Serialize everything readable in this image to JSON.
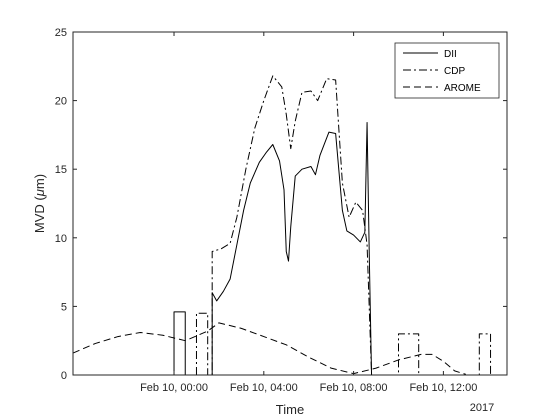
{
  "chart_data": {
    "type": "line",
    "xlabel": "Time",
    "ylabel": "MVD (μm)",
    "ylabel_parts": [
      "MVD (",
      "μ",
      "m)"
    ],
    "x_offset_label": "2017",
    "xlim": [
      "Feb 09, 19:30",
      "Feb 10, 14:50"
    ],
    "ylim": [
      0,
      25
    ],
    "x_ticks": [
      "Feb 10, 00:00",
      "Feb 10, 04:00",
      "Feb 10, 08:00",
      "Feb 10, 12:00"
    ],
    "y_ticks": [
      "0",
      "5",
      "10",
      "15",
      "20",
      "25"
    ],
    "legend_position": "top-right",
    "series": [
      {
        "name": "DII",
        "style": "solid",
        "color": "#000000",
        "points": [
          [
            "Feb 10, 00:00",
            0
          ],
          [
            "Feb 10, 00:00",
            4.6
          ],
          [
            "Feb 10, 00:30",
            4.6
          ],
          [
            "Feb 10, 00:30",
            0
          ],
          [
            "Feb 10, 01:42",
            0
          ],
          [
            "Feb 10, 01:42",
            6.0
          ],
          [
            "Feb 10, 01:54",
            5.4
          ],
          [
            "Feb 10, 02:12",
            6.1
          ],
          [
            "Feb 10, 02:30",
            7.0
          ],
          [
            "Feb 10, 02:48",
            9.5
          ],
          [
            "Feb 10, 03:06",
            12.0
          ],
          [
            "Feb 10, 03:24",
            14.0
          ],
          [
            "Feb 10, 03:48",
            15.5
          ],
          [
            "Feb 10, 04:06",
            16.2
          ],
          [
            "Feb 10, 04:24",
            16.8
          ],
          [
            "Feb 10, 04:42",
            15.6
          ],
          [
            "Feb 10, 04:54",
            13.5
          ],
          [
            "Feb 10, 05:00",
            9.0
          ],
          [
            "Feb 10, 05:06",
            8.3
          ],
          [
            "Feb 10, 05:12",
            10.8
          ],
          [
            "Feb 10, 05:24",
            14.5
          ],
          [
            "Feb 10, 05:42",
            15.0
          ],
          [
            "Feb 10, 06:06",
            15.2
          ],
          [
            "Feb 10, 06:18",
            14.6
          ],
          [
            "Feb 10, 06:30",
            16.0
          ],
          [
            "Feb 10, 06:54",
            17.7
          ],
          [
            "Feb 10, 07:12",
            17.6
          ],
          [
            "Feb 10, 07:30",
            12.0
          ],
          [
            "Feb 10, 07:42",
            10.5
          ],
          [
            "Feb 10, 08:00",
            10.2
          ],
          [
            "Feb 10, 08:18",
            9.7
          ],
          [
            "Feb 10, 08:30",
            10.4
          ],
          [
            "Feb 10, 08:36",
            18.4
          ],
          [
            "Feb 10, 08:42",
            8.5
          ],
          [
            "Feb 10, 08:48",
            0
          ]
        ]
      },
      {
        "name": "CDP",
        "style": "dashdot",
        "color": "#000000",
        "points": [
          [
            "Feb 10, 01:00",
            0
          ],
          [
            "Feb 10, 01:00",
            4.5
          ],
          [
            "Feb 10, 01:30",
            4.5
          ],
          [
            "Feb 10, 01:30",
            0
          ],
          [
            "Feb 10, 01:42",
            0
          ],
          [
            "Feb 10, 01:42",
            9.0
          ],
          [
            "Feb 10, 02:06",
            9.2
          ],
          [
            "Feb 10, 02:30",
            9.6
          ],
          [
            "Feb 10, 02:48",
            11.5
          ],
          [
            "Feb 10, 03:12",
            15.0
          ],
          [
            "Feb 10, 03:36",
            18.0
          ],
          [
            "Feb 10, 04:00",
            20.0
          ],
          [
            "Feb 10, 04:24",
            21.8
          ],
          [
            "Feb 10, 04:48",
            21.0
          ],
          [
            "Feb 10, 05:00",
            19.0
          ],
          [
            "Feb 10, 05:12",
            16.5
          ],
          [
            "Feb 10, 05:24",
            18.5
          ],
          [
            "Feb 10, 05:42",
            20.6
          ],
          [
            "Feb 10, 06:06",
            20.7
          ],
          [
            "Feb 10, 06:24",
            20.0
          ],
          [
            "Feb 10, 06:48",
            21.6
          ],
          [
            "Feb 10, 07:12",
            21.5
          ],
          [
            "Feb 10, 07:30",
            14.0
          ],
          [
            "Feb 10, 07:48",
            11.5
          ],
          [
            "Feb 10, 08:06",
            12.6
          ],
          [
            "Feb 10, 08:24",
            12.0
          ],
          [
            "Feb 10, 08:36",
            9.5
          ],
          [
            "Feb 10, 08:48",
            0
          ],
          [
            "Feb 10, 10:00",
            0
          ],
          [
            "Feb 10, 10:00",
            3.0
          ],
          [
            "Feb 10, 10:54",
            3.0
          ],
          [
            "Feb 10, 10:54",
            0
          ],
          [
            "Feb 10, 13:36",
            0
          ],
          [
            "Feb 10, 13:36",
            3.0
          ],
          [
            "Feb 10, 14:06",
            3.0
          ],
          [
            "Feb 10, 14:06",
            0
          ]
        ]
      },
      {
        "name": "AROME",
        "style": "dashed",
        "color": "#000000",
        "points": [
          [
            "Feb 09, 19:30",
            1.6
          ],
          [
            "Feb 09, 20:30",
            2.3
          ],
          [
            "Feb 09, 21:30",
            2.8
          ],
          [
            "Feb 09, 22:30",
            3.1
          ],
          [
            "Feb 09, 23:30",
            2.9
          ],
          [
            "Feb 10, 00:30",
            2.5
          ],
          [
            "Feb 10, 01:30",
            3.2
          ],
          [
            "Feb 10, 02:00",
            3.8
          ],
          [
            "Feb 10, 03:00",
            3.4
          ],
          [
            "Feb 10, 04:00",
            2.8
          ],
          [
            "Feb 10, 05:00",
            2.2
          ],
          [
            "Feb 10, 06:00",
            1.3
          ],
          [
            "Feb 10, 07:00",
            0.5
          ],
          [
            "Feb 10, 08:00",
            0.1
          ],
          [
            "Feb 10, 09:00",
            0.5
          ],
          [
            "Feb 10, 10:00",
            1.1
          ],
          [
            "Feb 10, 11:00",
            1.5
          ],
          [
            "Feb 10, 11:30",
            1.5
          ],
          [
            "Feb 10, 12:00",
            1.0
          ],
          [
            "Feb 10, 12:30",
            0.3
          ],
          [
            "Feb 10, 13:00",
            0.05
          ]
        ]
      }
    ]
  }
}
